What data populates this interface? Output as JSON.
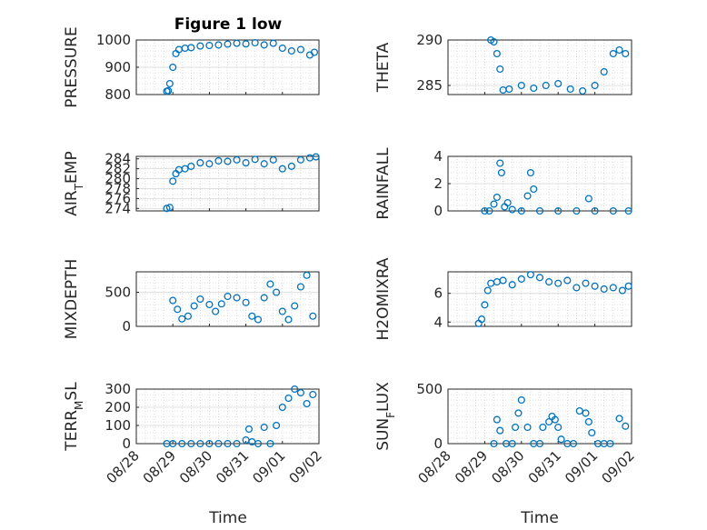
{
  "figure": {
    "title": "Figure 1 low",
    "marker_color": "#0072BD",
    "axis_color": "#262626",
    "grid_color": "#c8c8c8"
  },
  "chart_data": [
    {
      "type": "scatter",
      "ylabel": "PRESSURE",
      "ylim": [
        800,
        1000
      ],
      "yticks": [
        800,
        900,
        1000
      ],
      "grid": "on",
      "x": [
        "08/28 20:00",
        "08/28 21:00",
        "08/28 22:00",
        "08/29 00:00",
        "08/29 02:00",
        "08/29 04:00",
        "08/29 08:00",
        "08/29 12:00",
        "08/29 18:00",
        "08/30 00:00",
        "08/30 06:00",
        "08/30 12:00",
        "08/30 18:00",
        "08/31 00:00",
        "08/31 06:00",
        "08/31 12:00",
        "08/31 18:00",
        "09/01 00:00",
        "09/01 06:00",
        "09/01 12:00",
        "09/01 18:00",
        "09/01 21:00"
      ],
      "y": [
        812,
        814,
        840,
        900,
        950,
        965,
        970,
        972,
        978,
        980,
        982,
        985,
        988,
        986,
        990,
        982,
        988,
        970,
        960,
        965,
        945,
        955
      ]
    },
    {
      "type": "scatter",
      "ylabel": "THETA",
      "ylim": [
        284,
        290
      ],
      "yticks": [
        285,
        290
      ],
      "grid": "on",
      "x": [
        "08/29 04:00",
        "08/29 06:00",
        "08/29 08:00",
        "08/29 10:00",
        "08/29 12:00",
        "08/29 16:00",
        "08/30 00:00",
        "08/30 08:00",
        "08/30 16:00",
        "08/31 00:00",
        "08/31 08:00",
        "08/31 16:00",
        "09/01 00:00",
        "09/01 06:00",
        "09/01 12:00",
        "09/01 16:00",
        "09/01 20:00"
      ],
      "y": [
        290,
        289.8,
        288.5,
        286.8,
        284.5,
        284.6,
        285,
        284.7,
        285.0,
        285.2,
        284.6,
        284.4,
        285.0,
        286.5,
        288.5,
        288.9,
        288.5
      ]
    },
    {
      "type": "scatter",
      "ylabel": "AIR_TEMP",
      "ylim": [
        273.5,
        284.5
      ],
      "yticks": [
        274,
        276,
        278,
        280,
        282,
        284
      ],
      "grid": "on",
      "x": [
        "08/28 20:00",
        "08/28 22:00",
        "08/29 00:00",
        "08/29 02:00",
        "08/29 04:00",
        "08/29 08:00",
        "08/29 12:00",
        "08/29 18:00",
        "08/30 00:00",
        "08/30 06:00",
        "08/30 12:00",
        "08/30 18:00",
        "08/31 00:00",
        "08/31 06:00",
        "08/31 12:00",
        "08/31 18:00",
        "09/01 00:00",
        "09/01 06:00",
        "09/01 12:00",
        "09/01 18:00",
        "09/01 22:00"
      ],
      "y": [
        274.0,
        274.2,
        279.5,
        281.0,
        281.8,
        282.0,
        282.5,
        283.2,
        283.0,
        283.6,
        283.5,
        283.8,
        283.2,
        283.9,
        283.0,
        283.8,
        282.0,
        282.5,
        283.8,
        284.2,
        284.4
      ]
    },
    {
      "type": "scatter",
      "ylabel": "RAINFALL",
      "ylim": [
        0,
        4
      ],
      "yticks": [
        0,
        2,
        4
      ],
      "grid": "on",
      "x": [
        "08/29 00:00",
        "08/29 03:00",
        "08/29 06:00",
        "08/29 08:00",
        "08/29 10:00",
        "08/29 11:00",
        "08/29 13:00",
        "08/29 15:00",
        "08/29 18:00",
        "08/30 00:00",
        "08/30 04:00",
        "08/30 06:00",
        "08/30 08:00",
        "08/30 12:00",
        "08/31 00:00",
        "08/31 12:00",
        "08/31 20:00",
        "09/01 00:00",
        "09/01 12:00",
        "09/01 22:00"
      ],
      "y": [
        0,
        0,
        0.5,
        1.0,
        3.5,
        2.8,
        0.3,
        0.6,
        0.1,
        0,
        1.1,
        2.8,
        1.6,
        0,
        0,
        0,
        0.9,
        0,
        0,
        0
      ]
    },
    {
      "type": "scatter",
      "ylabel": "MIXDEPTH",
      "ylim": [
        0,
        800
      ],
      "yticks": [
        0,
        500
      ],
      "grid": "on",
      "x": [
        "08/29 00:00",
        "08/29 03:00",
        "08/29 06:00",
        "08/29 10:00",
        "08/29 14:00",
        "08/29 18:00",
        "08/30 00:00",
        "08/30 04:00",
        "08/30 08:00",
        "08/30 12:00",
        "08/30 18:00",
        "08/31 00:00",
        "08/31 04:00",
        "08/31 08:00",
        "08/31 12:00",
        "08/31 16:00",
        "08/31 20:00",
        "09/01 00:00",
        "09/01 04:00",
        "09/01 08:00",
        "09/01 12:00",
        "09/01 16:00",
        "09/01 20:00"
      ],
      "y": [
        380,
        250,
        110,
        150,
        300,
        400,
        320,
        220,
        330,
        440,
        420,
        350,
        150,
        100,
        420,
        620,
        500,
        220,
        100,
        300,
        580,
        750,
        150
      ]
    },
    {
      "type": "scatter",
      "ylabel": "H2OMIXRA",
      "ylim": [
        3.7,
        7.5
      ],
      "yticks": [
        4,
        6
      ],
      "grid": "on",
      "x": [
        "08/28 20:00",
        "08/28 22:00",
        "08/29 00:00",
        "08/29 02:00",
        "08/29 04:00",
        "08/29 08:00",
        "08/29 12:00",
        "08/29 18:00",
        "08/30 00:00",
        "08/30 06:00",
        "08/30 12:00",
        "08/30 18:00",
        "08/31 00:00",
        "08/31 06:00",
        "08/31 12:00",
        "08/31 18:00",
        "09/01 00:00",
        "09/01 06:00",
        "09/01 12:00",
        "09/01 18:00",
        "09/01 22:00"
      ],
      "y": [
        3.9,
        4.2,
        5.2,
        6.2,
        6.7,
        6.8,
        6.9,
        6.6,
        7.0,
        7.3,
        7.1,
        6.8,
        6.7,
        6.9,
        6.4,
        6.7,
        6.5,
        6.3,
        6.4,
        6.2,
        6.5
      ]
    },
    {
      "type": "scatter",
      "ylabel": "TERR_MSL",
      "ylim": [
        0,
        300
      ],
      "yticks": [
        0,
        100,
        200,
        300
      ],
      "grid": "on",
      "x": [
        "08/28 20:00",
        "08/29 00:00",
        "08/29 06:00",
        "08/29 12:00",
        "08/29 18:00",
        "08/30 00:00",
        "08/30 06:00",
        "08/30 12:00",
        "08/30 18:00",
        "08/31 00:00",
        "08/31 02:00",
        "08/31 04:00",
        "08/31 08:00",
        "08/31 12:00",
        "08/31 16:00",
        "08/31 20:00",
        "09/01 00:00",
        "09/01 04:00",
        "09/01 08:00",
        "09/01 12:00",
        "09/01 16:00",
        "09/01 20:00"
      ],
      "y": [
        0,
        0,
        0,
        0,
        0,
        0,
        0,
        0,
        0,
        20,
        80,
        10,
        0,
        90,
        0,
        100,
        200,
        250,
        300,
        280,
        220,
        270
      ]
    },
    {
      "type": "scatter",
      "ylabel": "SUN_FLUX",
      "ylim": [
        0,
        500
      ],
      "yticks": [
        0,
        500
      ],
      "grid": "on",
      "x": [
        "08/29 06:00",
        "08/29 08:00",
        "08/29 10:00",
        "08/29 14:00",
        "08/29 18:00",
        "08/29 20:00",
        "08/29 22:00",
        "08/30 00:00",
        "08/30 04:00",
        "08/30 08:00",
        "08/30 12:00",
        "08/30 14:00",
        "08/30 18:00",
        "08/30 20:00",
        "08/30 22:00",
        "08/31 00:00",
        "08/31 02:00",
        "08/31 06:00",
        "08/31 10:00",
        "08/31 14:00",
        "08/31 18:00",
        "08/31 20:00",
        "08/31 22:00",
        "09/01 02:00",
        "09/01 06:00",
        "09/01 10:00",
        "09/01 16:00",
        "09/01 20:00"
      ],
      "y": [
        0,
        220,
        120,
        0,
        0,
        150,
        280,
        400,
        150,
        0,
        0,
        150,
        200,
        250,
        220,
        150,
        40,
        0,
        0,
        300,
        280,
        200,
        100,
        0,
        0,
        0,
        230,
        160
      ]
    }
  ],
  "x_axis": {
    "ticks": [
      "08/28",
      "08/29",
      "08/30",
      "08/31",
      "09/01",
      "09/02"
    ],
    "label": "Time"
  }
}
